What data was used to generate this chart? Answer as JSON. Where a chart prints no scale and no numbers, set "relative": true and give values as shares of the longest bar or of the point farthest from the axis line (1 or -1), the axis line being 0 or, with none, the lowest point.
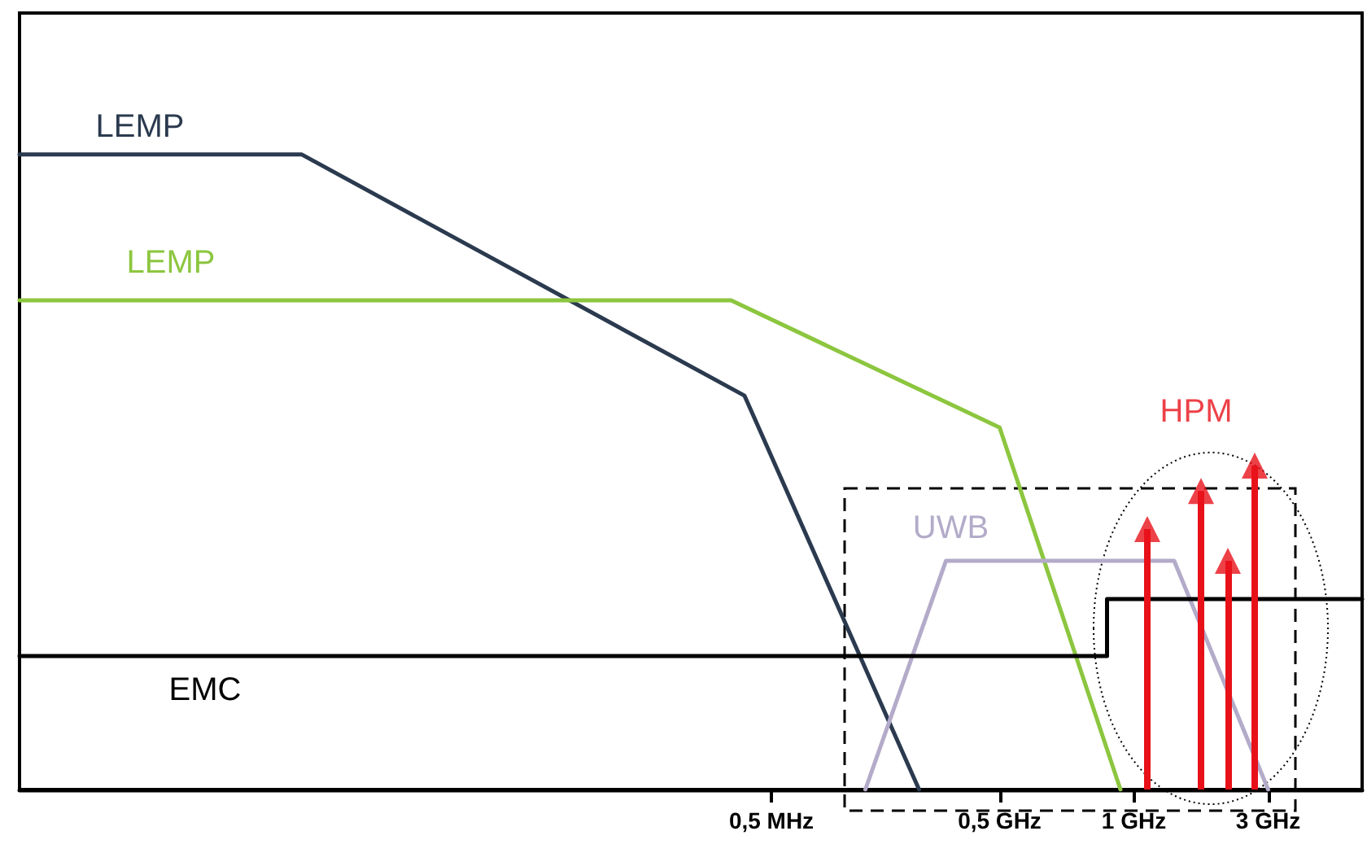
{
  "chart_data": {
    "type": "line",
    "relative": true,
    "categories": [
      null,
      null,
      null,
      null,
      null,
      null,
      null,
      null,
      null,
      null,
      null,
      null,
      null,
      null,
      null,
      null,
      null,
      null,
      null,
      null,
      null,
      null,
      null,
      null,
      null,
      null,
      null,
      null,
      null,
      null,
      null,
      null,
      null,
      null,
      null,
      null,
      null,
      null,
      null,
      null,
      null,
      null,
      null,
      null,
      null,
      null,
      null,
      null,
      null,
      null,
      null,
      null,
      null,
      null,
      null,
      null,
      "0,5 MHz",
      null,
      null,
      null,
      null,
      null,
      null,
      null,
      null,
      null,
      null,
      null,
      null,
      null,
      null,
      null,
      null,
      "0,5 GHz",
      null,
      null,
      null,
      null,
      null,
      null,
      null,
      null,
      null,
      "1 GHz",
      null,
      null,
      null,
      null,
      null,
      null,
      null,
      null,
      null,
      "3 GHz",
      null,
      null,
      null,
      null,
      null,
      null,
      null
    ],
    "grid": false,
    "legend": false,
    "line_style": "solid",
    "marker": "none",
    "series": [
      {
        "name": "LEMP",
        "color": "#2b3a4f",
        "values": [
          1,
          null,
          null,
          null,
          null,
          null,
          null,
          null,
          null,
          null,
          null,
          null,
          null,
          null,
          null,
          null,
          null,
          null,
          null,
          null,
          null,
          1,
          null,
          null,
          null,
          null,
          null,
          null,
          null,
          null,
          null,
          null,
          null,
          null,
          null,
          null,
          null,
          null,
          null,
          null,
          null,
          null,
          null,
          null,
          null,
          null,
          null,
          null,
          null,
          null,
          null,
          null,
          null,
          null,
          0.62,
          null,
          null,
          null,
          null,
          null,
          null,
          null,
          null,
          null,
          null,
          null,
          null,
          0,
          null,
          null,
          null,
          null,
          null,
          null,
          null,
          null,
          null,
          null,
          null,
          null,
          null,
          null,
          null,
          null,
          null,
          null,
          null,
          null,
          null,
          null,
          null,
          null,
          null,
          null,
          null,
          null,
          null,
          null,
          null,
          null,
          null
        ]
      },
      {
        "name": "LEMP",
        "color": "#8cc63f",
        "values": [
          0.77,
          null,
          null,
          null,
          null,
          null,
          null,
          null,
          null,
          null,
          null,
          null,
          null,
          null,
          null,
          null,
          null,
          null,
          null,
          null,
          null,
          null,
          null,
          null,
          null,
          null,
          null,
          null,
          null,
          null,
          null,
          null,
          null,
          null,
          null,
          null,
          null,
          null,
          null,
          null,
          null,
          null,
          null,
          null,
          null,
          null,
          null,
          null,
          null,
          null,
          null,
          null,
          null,
          0.77,
          null,
          null,
          null,
          null,
          null,
          null,
          null,
          null,
          null,
          null,
          null,
          null,
          null,
          null,
          null,
          null,
          null,
          null,
          null,
          0.57,
          null,
          null,
          null,
          null,
          null,
          null,
          null,
          null,
          0,
          null,
          null,
          null,
          null,
          null,
          null,
          null,
          null,
          null,
          null,
          null,
          null,
          null,
          null,
          null,
          null,
          null,
          null
        ]
      },
      {
        "name": "UWB",
        "color": "#b3abc9",
        "values": [
          null,
          null,
          null,
          null,
          null,
          null,
          null,
          null,
          null,
          null,
          null,
          null,
          null,
          null,
          null,
          null,
          null,
          null,
          null,
          null,
          null,
          null,
          null,
          null,
          null,
          null,
          null,
          null,
          null,
          null,
          null,
          null,
          null,
          null,
          null,
          null,
          null,
          null,
          null,
          null,
          null,
          null,
          null,
          null,
          null,
          null,
          null,
          null,
          null,
          null,
          null,
          null,
          null,
          null,
          null,
          null,
          null,
          null,
          null,
          null,
          null,
          null,
          null,
          0,
          null,
          null,
          null,
          null,
          null,
          0.36,
          null,
          null,
          null,
          null,
          null,
          null,
          null,
          null,
          null,
          null,
          null,
          null,
          null,
          null,
          null,
          null,
          0.36,
          null,
          null,
          null,
          null,
          null,
          null,
          0,
          null,
          null,
          null,
          null,
          null,
          null,
          null
        ]
      },
      {
        "name": "EMC",
        "color": "#000000",
        "type": "step",
        "values": [
          0.21,
          null,
          null,
          null,
          null,
          null,
          null,
          null,
          null,
          null,
          null,
          null,
          null,
          null,
          null,
          null,
          null,
          null,
          null,
          null,
          null,
          null,
          null,
          null,
          null,
          null,
          null,
          null,
          null,
          null,
          null,
          null,
          null,
          null,
          null,
          null,
          null,
          null,
          null,
          null,
          null,
          null,
          null,
          null,
          null,
          null,
          null,
          null,
          null,
          null,
          null,
          null,
          null,
          null,
          null,
          null,
          null,
          null,
          null,
          null,
          null,
          null,
          null,
          null,
          null,
          null,
          null,
          null,
          null,
          null,
          null,
          null,
          null,
          null,
          null,
          null,
          null,
          null,
          null,
          null,
          null,
          0.3,
          null,
          null,
          null,
          null,
          null,
          null,
          null,
          null,
          null,
          null,
          null,
          null,
          null,
          null,
          null,
          null,
          null,
          null,
          0.3
        ]
      },
      {
        "name": "HPM",
        "color": "#e8111a",
        "type": "lollipop",
        "marker": "triangle",
        "values": [
          null,
          null,
          null,
          null,
          null,
          null,
          null,
          null,
          null,
          null,
          null,
          null,
          null,
          null,
          null,
          null,
          null,
          null,
          null,
          null,
          null,
          null,
          null,
          null,
          null,
          null,
          null,
          null,
          null,
          null,
          null,
          null,
          null,
          null,
          null,
          null,
          null,
          null,
          null,
          null,
          null,
          null,
          null,
          null,
          null,
          null,
          null,
          null,
          null,
          null,
          null,
          null,
          null,
          null,
          null,
          null,
          null,
          null,
          null,
          null,
          null,
          null,
          null,
          null,
          null,
          null,
          null,
          null,
          null,
          null,
          null,
          null,
          null,
          null,
          null,
          null,
          null,
          null,
          null,
          null,
          null,
          null,
          null,
          null,
          0.41,
          null,
          null,
          null,
          0.47,
          null,
          0.36,
          null,
          0.51,
          null,
          null,
          null,
          null,
          null,
          null,
          null,
          null
        ]
      }
    ]
  }
}
